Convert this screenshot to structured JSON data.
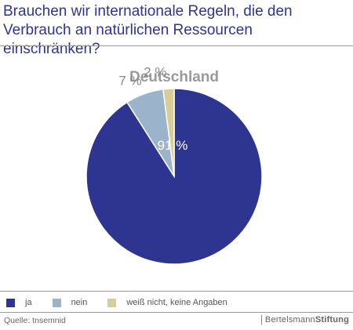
{
  "title": "Brauchen wir internationale Regeln, die den Verbrauch an natürlichen Ressourcen einschränken?",
  "chart_data": {
    "type": "pie",
    "title": "Deutschland",
    "slices": [
      {
        "name": "ja",
        "value": 91,
        "label": "91 %",
        "color": "#2d3590"
      },
      {
        "name": "nein",
        "value": 7,
        "label": "7 %",
        "color": "#9bb3cb"
      },
      {
        "name": "weiß nicht, keine Angaben",
        "value": 2,
        "label": "2 %",
        "color": "#d8cd94"
      }
    ]
  },
  "legend": [
    {
      "label": "ja",
      "color": "#2d3590"
    },
    {
      "label": "nein",
      "color": "#9bb3cb"
    },
    {
      "label": "weiß nicht, keine Angaben",
      "color": "#d8cd94"
    }
  ],
  "source": "Quelle: tnsemnid",
  "brand": {
    "part1": "Bertelsmann",
    "part2": "Stiftung"
  }
}
